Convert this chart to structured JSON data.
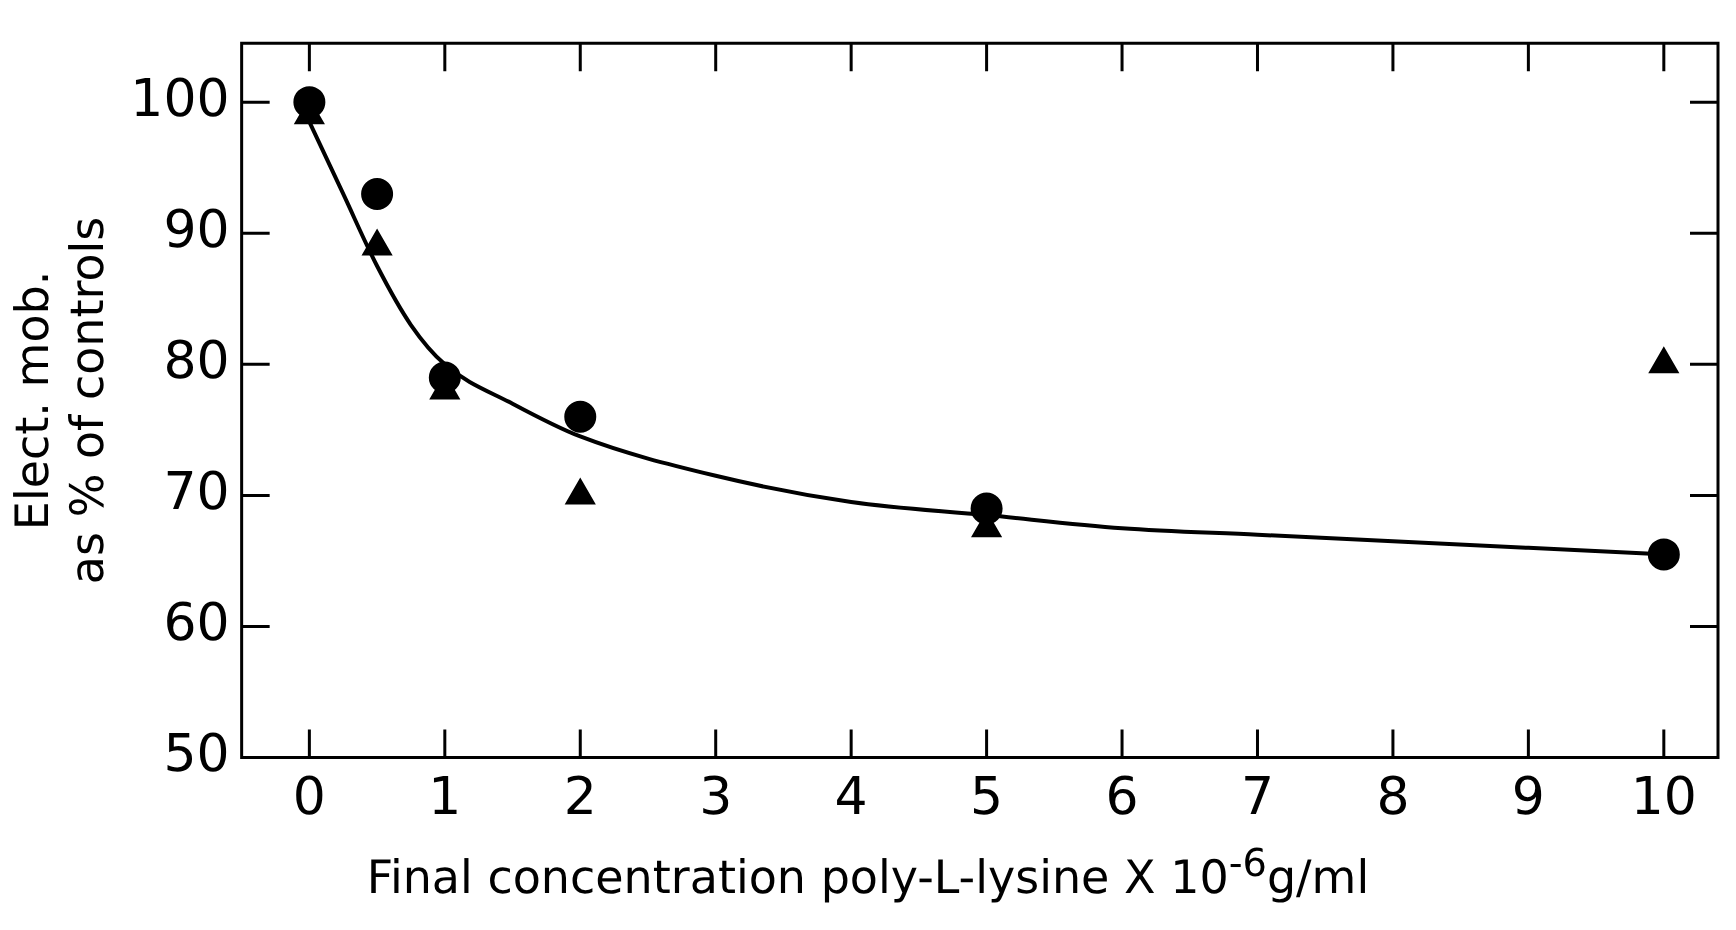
{
  "chart_data": {
    "type": "scatter",
    "xlabel": "Final concentration poly-L-lysine X 10$^{-6}$g/ml",
    "ylabel": "Elect. mob.\nas % of controls",
    "xlim": [
      -0.5,
      10.4
    ],
    "xticks": [
      0,
      1,
      2,
      3,
      4,
      5,
      6,
      7,
      8,
      9,
      10
    ],
    "ylim": [
      50,
      104.5
    ],
    "yticks": [
      50,
      60,
      70,
      80,
      90,
      100
    ],
    "grid": false,
    "legend": false,
    "series": [
      {
        "type": "scatter",
        "marker": "circle",
        "color": "#000000",
        "x": [
          0,
          0.5,
          1,
          2,
          5,
          10
        ],
        "values": [
          100,
          93,
          79,
          76,
          69,
          65.5
        ]
      },
      {
        "type": "scatter",
        "marker": "triangle",
        "color": "#000000",
        "x": [
          0,
          0.5,
          1,
          2,
          5,
          10
        ],
        "values": [
          99,
          89,
          78,
          70,
          67.5,
          80
        ]
      },
      {
        "type": "line",
        "marker": "none",
        "line_style": "solid",
        "color": "#000000",
        "x": [
          0,
          0.25,
          0.5,
          0.75,
          1,
          1.5,
          2,
          3,
          4,
          5,
          6,
          7,
          8,
          9,
          10
        ],
        "values": [
          98.5,
          93,
          87.5,
          83,
          80,
          77,
          74.5,
          71.5,
          69.5,
          68.5,
          67.5,
          67,
          66.5,
          66,
          65.5
        ]
      }
    ]
  }
}
